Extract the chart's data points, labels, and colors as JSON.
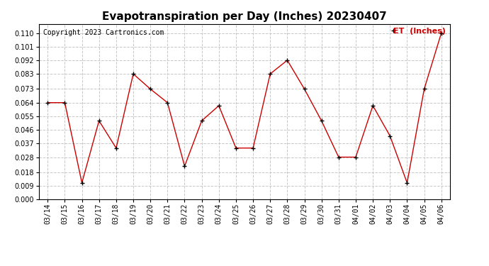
{
  "title": "Evapotranspiration per Day (Inches) 20230407",
  "copyright": "Copyright 2023 Cartronics.com",
  "legend_label": "ET  (Inches)",
  "x_labels": [
    "03/14",
    "03/15",
    "03/16",
    "03/17",
    "03/18",
    "03/19",
    "03/20",
    "03/21",
    "03/22",
    "03/23",
    "03/24",
    "03/25",
    "03/26",
    "03/27",
    "03/28",
    "03/29",
    "03/30",
    "03/31",
    "04/01",
    "04/02",
    "04/03",
    "04/04",
    "04/05",
    "04/06"
  ],
  "y_values": [
    0.064,
    0.064,
    0.011,
    0.052,
    0.034,
    0.083,
    0.073,
    0.064,
    0.022,
    0.052,
    0.062,
    0.034,
    0.034,
    0.083,
    0.092,
    0.073,
    0.052,
    0.028,
    0.028,
    0.062,
    0.042,
    0.011,
    0.073,
    0.11
  ],
  "line_color": "#cc0000",
  "marker": "+",
  "marker_color": "#000000",
  "ylim": [
    0.0,
    0.116
  ],
  "yticks": [
    0.0,
    0.009,
    0.018,
    0.028,
    0.037,
    0.046,
    0.055,
    0.064,
    0.073,
    0.083,
    0.092,
    0.101,
    0.11
  ],
  "grid_color": "#c8c8c8",
  "background_color": "#ffffff",
  "title_fontsize": 11,
  "axis_fontsize": 7,
  "legend_fontsize": 8,
  "copyright_fontsize": 7
}
